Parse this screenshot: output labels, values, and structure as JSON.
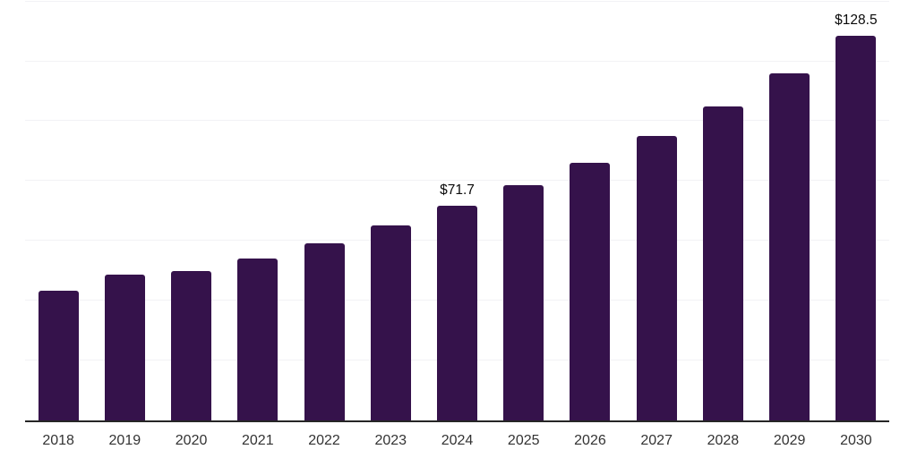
{
  "chart_data": {
    "type": "bar",
    "title": "",
    "xlabel": "",
    "ylabel": "",
    "categories": [
      "2018",
      "2019",
      "2020",
      "2021",
      "2022",
      "2023",
      "2024",
      "2025",
      "2026",
      "2027",
      "2028",
      "2029",
      "2030"
    ],
    "values": [
      43.3,
      48.7,
      49.9,
      54.1,
      59.2,
      65.1,
      71.7,
      78.5,
      86.0,
      95.0,
      104.8,
      115.9,
      128.5
    ],
    "data_labels": {
      "2024": "$71.7",
      "2030": "$128.5"
    },
    "ylim": [
      0,
      140.5
    ],
    "gridline_step": 20,
    "grid": true,
    "legend_position": "none",
    "colors": {
      "bar": "#35124B",
      "gridline": "#F2F2F5",
      "axis": "#262626",
      "tick_label": "#333333",
      "data_label": "#0A0A0A",
      "background": "#FFFFFF"
    }
  }
}
